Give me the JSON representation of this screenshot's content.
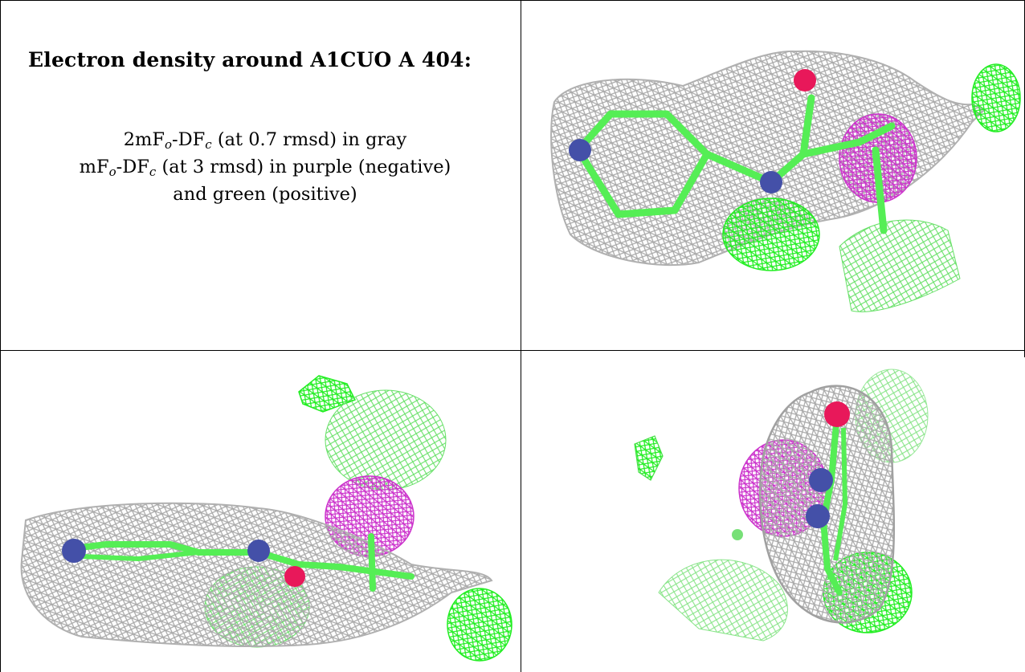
{
  "caption": {
    "title": "Electron density around A1CUO A 404:",
    "line1": {
      "a": "2mF",
      "b": "o",
      "c": "-DF",
      "d": "c",
      "e": " (at 0.7 rmsd) in gray"
    },
    "line2": {
      "a": "mF",
      "b": "o",
      "c": "-DF",
      "d": "c",
      "e": " (at 3 rmsd) in purple (negative)"
    },
    "line3": "and green (positive)"
  },
  "colors": {
    "gray_mesh": "#a9a9a9",
    "purple_mesh": "#cc33cc",
    "green_mesh": "#22ee22",
    "bond_green": "#55ee55",
    "nitrogen": "#4450a8",
    "oxygen": "#e8185a"
  },
  "panels": [
    "view-top-right",
    "view-bottom-left",
    "view-bottom-right"
  ]
}
